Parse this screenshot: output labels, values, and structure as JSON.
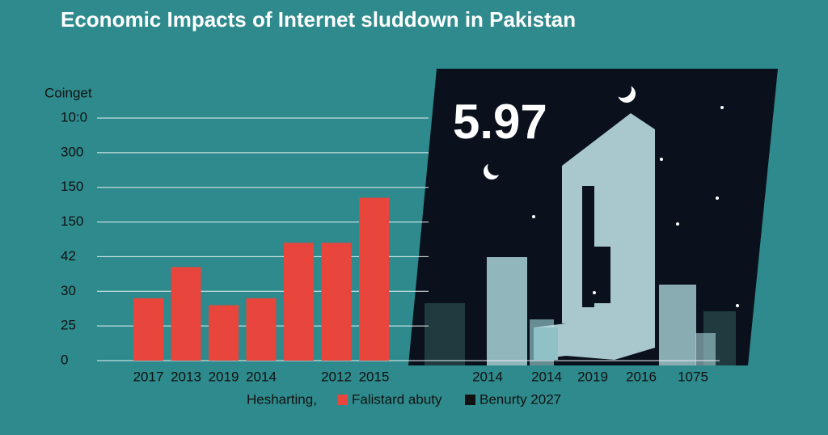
{
  "chart_data": {
    "type": "bar",
    "title": "Economic Impacts of Internet sluddown in Pakistan",
    "y_label": "Coinget",
    "categories": [
      "2017",
      "2013",
      "2019",
      "2014",
      null,
      "2012",
      "2015"
    ],
    "series": [
      {
        "name": "Falistard abuty",
        "color": "#e8453c",
        "values": [
          1.8,
          2.7,
          1.6,
          1.8,
          3.4,
          3.4,
          4.7
        ]
      }
    ],
    "ylim": [
      0,
      7
    ],
    "yticks": [
      0,
      {
        "value": 1,
        "label": "25"
      },
      {
        "value": 2,
        "label": "30"
      },
      {
        "value": 3,
        "label": "42"
      },
      {
        "value": 4,
        "label": "150"
      },
      {
        "value": 5,
        "label": "150"
      },
      {
        "value": 6,
        "label": "300"
      },
      {
        "value": 7,
        "label": "10:0"
      }
    ],
    "grid": true,
    "legend_title": "Hesharting,",
    "panel": {
      "annotation": "5.97",
      "name": "Benurty 2027",
      "color": "#111111",
      "categories": [
        "2014",
        "2014",
        "2019",
        "2016",
        "1075"
      ]
    }
  }
}
